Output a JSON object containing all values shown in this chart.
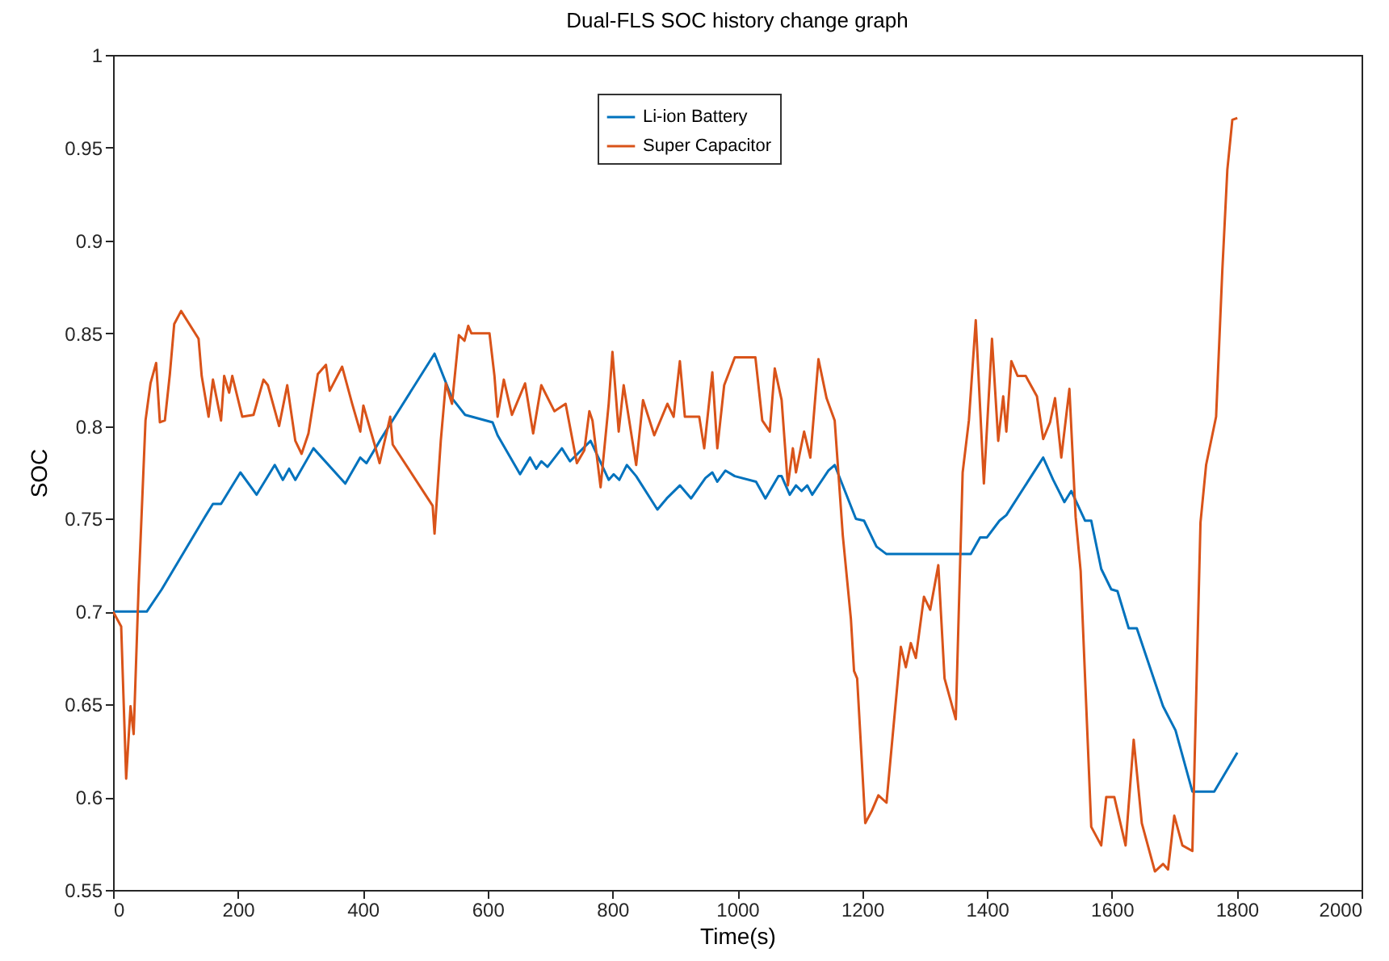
{
  "chart_data": {
    "type": "line",
    "title": "Dual-FLS SOC history change graph",
    "xlabel": "Time(s)",
    "ylabel": "SOC",
    "xlim": [
      0,
      2000
    ],
    "xticks": [
      0,
      200,
      400,
      600,
      800,
      1000,
      1200,
      1400,
      1600,
      1800,
      2000
    ],
    "ylim": [
      0.55,
      1
    ],
    "yticks": [
      0.55,
      0.6,
      0.65,
      0.7,
      0.75,
      0.8,
      0.85,
      0.9,
      0.95,
      1
    ],
    "legend": "top",
    "grid": false,
    "line_style": "solid",
    "marker": "none",
    "series": [
      {
        "name": "Li-ion Battery",
        "color": "#0072bd",
        "x": [
          0,
          54,
          78,
          147,
          160,
          173,
          204,
          230,
          259,
          272,
          282,
          292,
          321,
          372,
          396,
          406,
          429,
          515,
          543,
          564,
          608,
          616,
          652,
          668,
          678,
          686,
          696,
          719,
          732,
          765,
          794,
          802,
          811,
          823,
          838,
          872,
          887,
          908,
          926,
          949,
          960,
          968,
          981,
          996,
          1030,
          1045,
          1066,
          1071,
          1084,
          1094,
          1103,
          1112,
          1120,
          1146,
          1156,
          1190,
          1203,
          1223,
          1239,
          1374,
          1389,
          1400,
          1420,
          1431,
          1490,
          1506,
          1524,
          1535,
          1557,
          1567,
          1583,
          1599,
          1609,
          1627,
          1640,
          1682,
          1702,
          1729,
          1764,
          1801
        ],
        "values": [
          0.7,
          0.7,
          0.712,
          0.751,
          0.758,
          0.758,
          0.775,
          0.763,
          0.779,
          0.771,
          0.777,
          0.771,
          0.788,
          0.769,
          0.783,
          0.78,
          0.793,
          0.839,
          0.815,
          0.806,
          0.802,
          0.795,
          0.774,
          0.783,
          0.777,
          0.781,
          0.778,
          0.788,
          0.781,
          0.792,
          0.771,
          0.774,
          0.771,
          0.779,
          0.773,
          0.755,
          0.761,
          0.768,
          0.761,
          0.772,
          0.775,
          0.77,
          0.776,
          0.773,
          0.77,
          0.761,
          0.773,
          0.773,
          0.763,
          0.768,
          0.765,
          0.768,
          0.763,
          0.776,
          0.779,
          0.75,
          0.749,
          0.735,
          0.731,
          0.731,
          0.74,
          0.74,
          0.749,
          0.752,
          0.783,
          0.771,
          0.759,
          0.765,
          0.749,
          0.749,
          0.723,
          0.712,
          0.711,
          0.691,
          0.691,
          0.649,
          0.636,
          0.603,
          0.603,
          0.624
        ]
      },
      {
        "name": "Super Capacitor",
        "color": "#d95319",
        "x": [
          0,
          13,
          21,
          28,
          33,
          41,
          52,
          60,
          69,
          75,
          83,
          91,
          98,
          109,
          137,
          142,
          153,
          160,
          173,
          178,
          186,
          191,
          207,
          225,
          241,
          248,
          266,
          279,
          292,
          302,
          313,
          328,
          341,
          347,
          367,
          383,
          396,
          401,
          419,
          427,
          444,
          448,
          512,
          515,
          525,
          533,
          543,
          554,
          563,
          569,
          574,
          603,
          611,
          616,
          626,
          639,
          660,
          673,
          686,
          707,
          725,
          743,
          755,
          763,
          768,
          781,
          794,
          800,
          810,
          818,
          838,
          849,
          867,
          888,
          898,
          908,
          916,
          939,
          947,
          960,
          968,
          979,
          996,
          1029,
          1040,
          1052,
          1060,
          1071,
          1081,
          1089,
          1094,
          1107,
          1117,
          1130,
          1143,
          1156,
          1169,
          1182,
          1187,
          1192,
          1205,
          1216,
          1226,
          1239,
          1262,
          1270,
          1278,
          1286,
          1299,
          1309,
          1322,
          1332,
          1350,
          1361,
          1371,
          1382,
          1395,
          1408,
          1418,
          1426,
          1431,
          1439,
          1449,
          1462,
          1480,
          1490,
          1501,
          1509,
          1519,
          1532,
          1542,
          1550,
          1567,
          1583,
          1591,
          1604,
          1622,
          1635,
          1648,
          1669,
          1682,
          1690,
          1700,
          1713,
          1729,
          1742,
          1751,
          1767,
          1777,
          1785,
          1793,
          1801
        ],
        "values": [
          0.7,
          0.692,
          0.61,
          0.649,
          0.634,
          0.714,
          0.803,
          0.823,
          0.834,
          0.802,
          0.803,
          0.828,
          0.855,
          0.862,
          0.847,
          0.827,
          0.805,
          0.825,
          0.803,
          0.827,
          0.818,
          0.827,
          0.805,
          0.806,
          0.825,
          0.822,
          0.8,
          0.822,
          0.792,
          0.785,
          0.796,
          0.828,
          0.833,
          0.819,
          0.832,
          0.812,
          0.797,
          0.811,
          0.79,
          0.78,
          0.805,
          0.79,
          0.757,
          0.742,
          0.792,
          0.823,
          0.812,
          0.849,
          0.846,
          0.854,
          0.85,
          0.85,
          0.827,
          0.805,
          0.825,
          0.806,
          0.823,
          0.796,
          0.822,
          0.808,
          0.812,
          0.78,
          0.787,
          0.808,
          0.803,
          0.767,
          0.812,
          0.84,
          0.797,
          0.822,
          0.779,
          0.814,
          0.795,
          0.812,
          0.805,
          0.835,
          0.805,
          0.805,
          0.788,
          0.829,
          0.788,
          0.822,
          0.837,
          0.837,
          0.803,
          0.797,
          0.831,
          0.814,
          0.768,
          0.788,
          0.775,
          0.797,
          0.783,
          0.836,
          0.815,
          0.803,
          0.741,
          0.696,
          0.668,
          0.664,
          0.586,
          0.593,
          0.601,
          0.597,
          0.681,
          0.67,
          0.683,
          0.675,
          0.708,
          0.701,
          0.725,
          0.664,
          0.642,
          0.775,
          0.803,
          0.857,
          0.769,
          0.847,
          0.792,
          0.816,
          0.797,
          0.835,
          0.827,
          0.827,
          0.816,
          0.793,
          0.802,
          0.815,
          0.783,
          0.82,
          0.751,
          0.722,
          0.584,
          0.574,
          0.6,
          0.6,
          0.574,
          0.631,
          0.586,
          0.56,
          0.564,
          0.561,
          0.59,
          0.574,
          0.571,
          0.748,
          0.779,
          0.805,
          0.884,
          0.938,
          0.965,
          0.966
        ]
      }
    ]
  }
}
